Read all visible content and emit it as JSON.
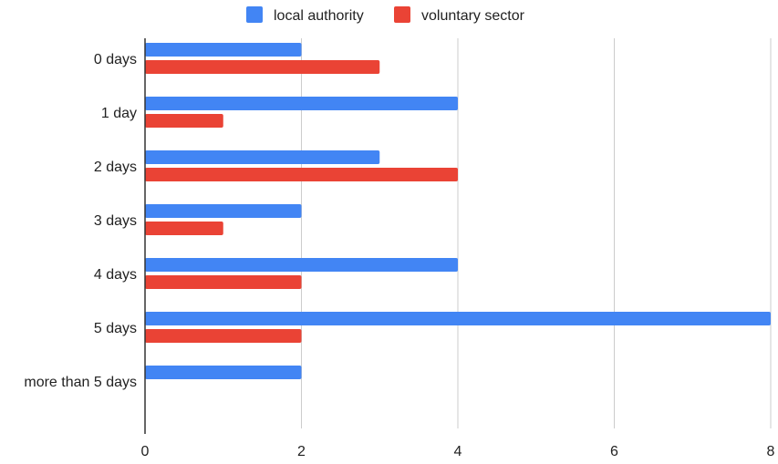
{
  "chart_data": {
    "type": "bar",
    "orientation": "horizontal",
    "categories": [
      "0 days",
      "1 day",
      "2 days",
      "3 days",
      "4 days",
      "5 days",
      "more than 5 days"
    ],
    "series": [
      {
        "name": "local authority",
        "color": "#4285F4",
        "values": [
          2,
          4,
          3,
          2,
          4,
          8,
          2
        ]
      },
      {
        "name": "voluntary sector",
        "color": "#EA4335",
        "values": [
          3,
          1,
          4,
          1,
          2,
          2,
          0
        ]
      }
    ],
    "xlim": [
      0,
      8
    ],
    "x_ticks": [
      "0",
      "2",
      "4",
      "6",
      "8"
    ],
    "grid": true,
    "legend_position": "top"
  }
}
